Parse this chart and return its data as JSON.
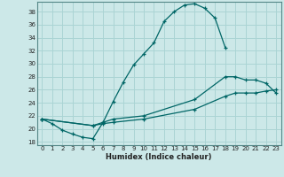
{
  "xlabel": "Humidex (Indice chaleur)",
  "bg_color": "#cce8e8",
  "grid_color": "#aad4d4",
  "line_color": "#006666",
  "xlim": [
    -0.5,
    23.5
  ],
  "ylim": [
    17.5,
    39.5
  ],
  "yticks": [
    18,
    20,
    22,
    24,
    26,
    28,
    30,
    32,
    34,
    36,
    38
  ],
  "xticks": [
    0,
    1,
    2,
    3,
    4,
    5,
    6,
    7,
    8,
    9,
    10,
    11,
    12,
    13,
    14,
    15,
    16,
    17,
    18,
    19,
    20,
    21,
    22,
    23
  ],
  "line1_x": [
    0,
    1,
    2,
    3,
    4,
    5,
    6,
    7,
    8,
    9,
    10,
    11,
    12,
    13,
    14,
    15,
    16,
    17,
    18
  ],
  "line1_y": [
    21.5,
    20.8,
    19.8,
    19.2,
    18.7,
    18.5,
    21.0,
    24.2,
    27.2,
    29.8,
    31.5,
    33.2,
    36.5,
    38.0,
    39.0,
    39.2,
    38.5,
    37.0,
    32.5
  ],
  "line2_x": [
    0,
    5,
    6,
    7,
    10,
    15,
    18,
    19,
    20,
    21,
    22,
    23
  ],
  "line2_y": [
    21.5,
    20.5,
    21.0,
    21.5,
    22.0,
    24.5,
    28.0,
    28.0,
    27.5,
    27.5,
    27.0,
    25.5
  ],
  "line3_x": [
    0,
    5,
    6,
    7,
    10,
    15,
    18,
    19,
    20,
    21,
    22,
    23
  ],
  "line3_y": [
    21.5,
    20.5,
    20.8,
    21.0,
    21.5,
    23.0,
    25.0,
    25.5,
    25.5,
    25.5,
    25.8,
    26.0
  ]
}
